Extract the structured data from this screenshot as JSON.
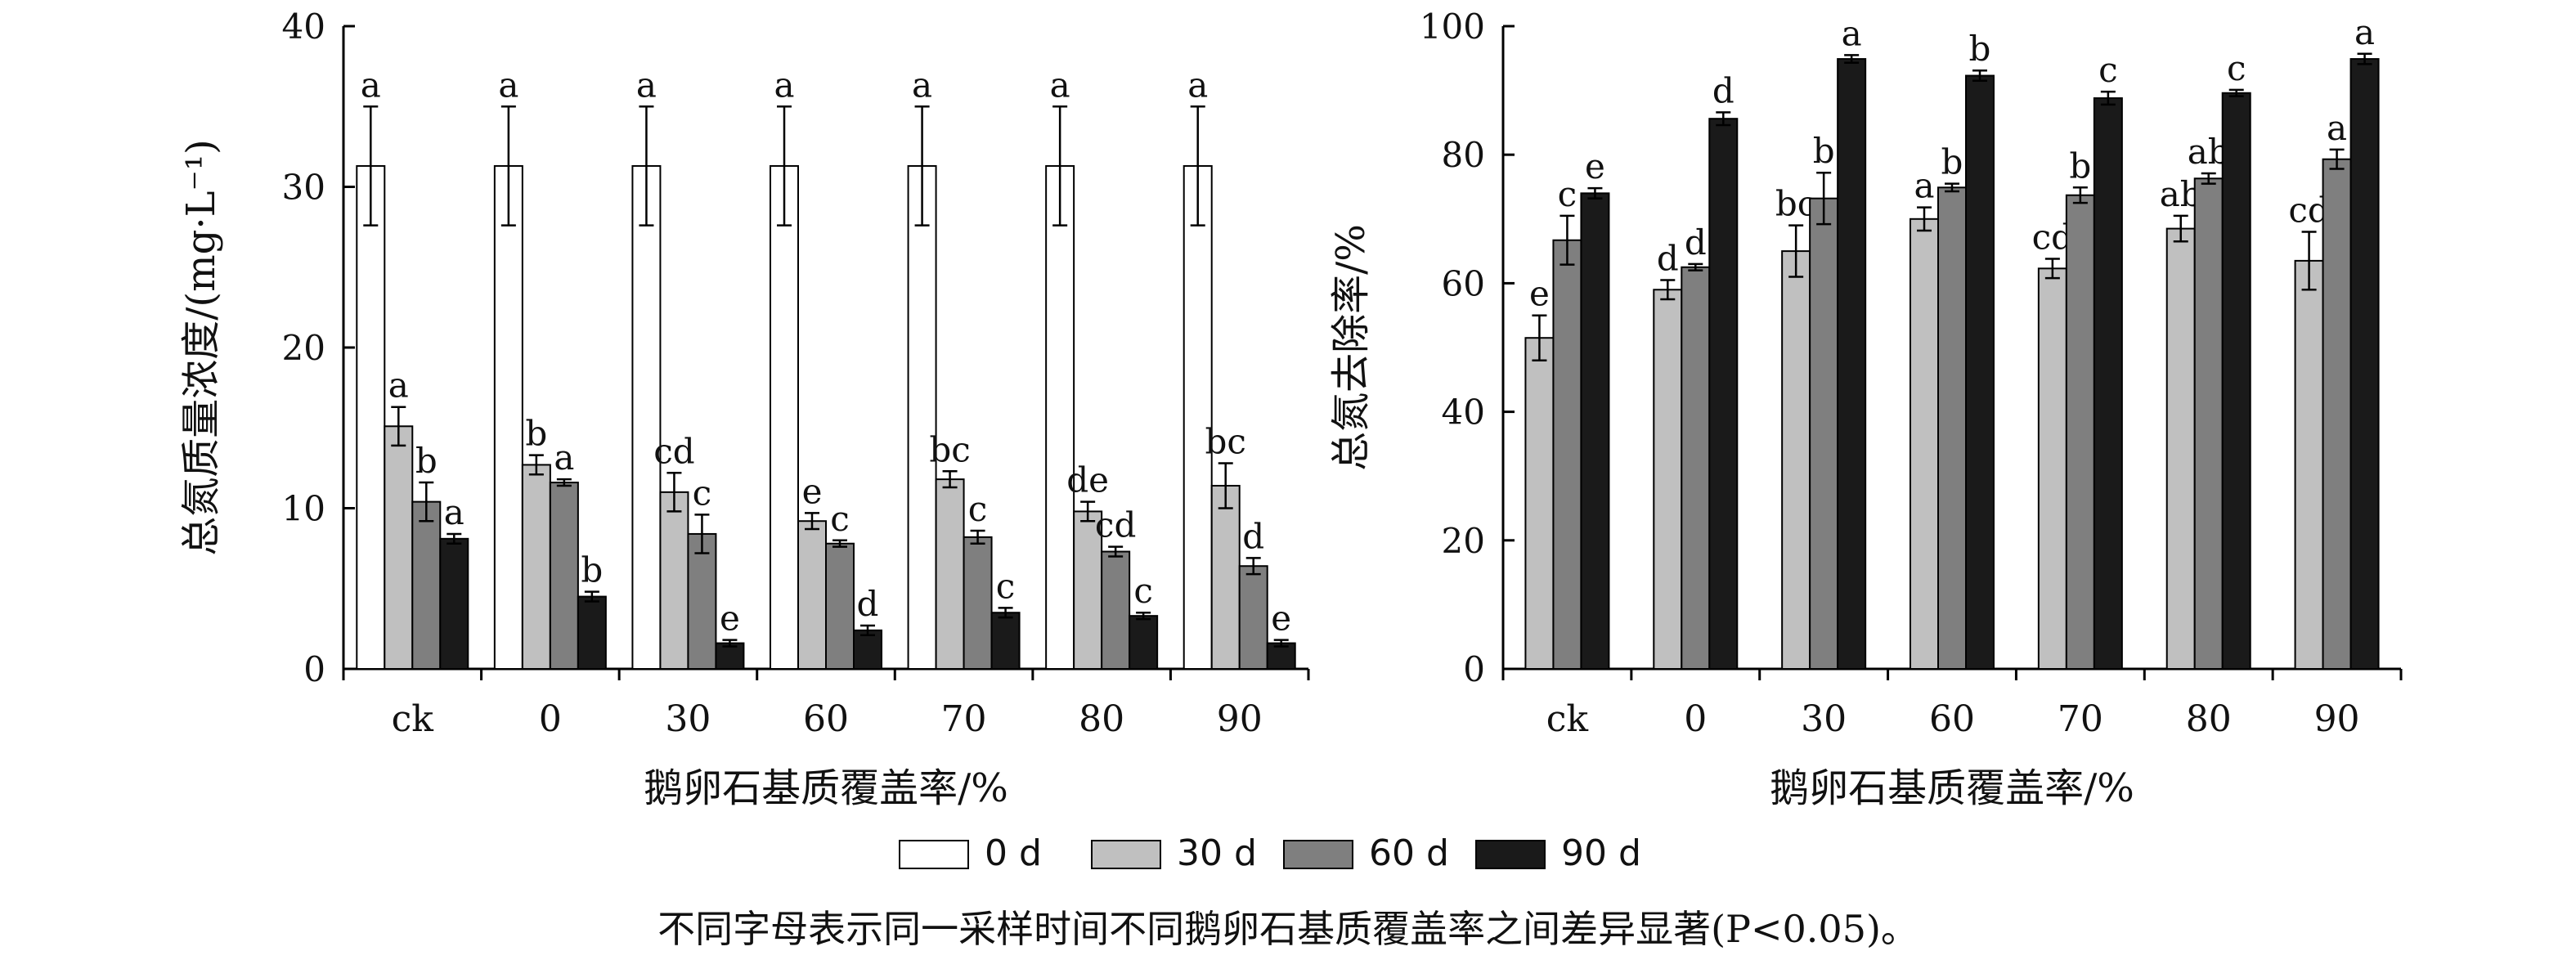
{
  "colors": {
    "0 d": "#ffffff",
    "30 d": "#c0c0c0",
    "60 d": "#7f7f7f",
    "90 d": "#1a1a1a",
    "axis": "#000000"
  },
  "legend": {
    "placement": "bottom-center",
    "items": [
      "0 d",
      "30 d",
      "60 d",
      "90 d"
    ]
  },
  "caption": {
    "text": "不同字母表示同一采样时间不同鹅卵石基质覆盖率之间差异显著(P<0.05)。"
  },
  "chart_data": [
    {
      "type": "bar",
      "title": "",
      "xlabel": "鹅卵石基质覆盖率/%",
      "ylabel": "总氮质量浓度/(mg·L⁻¹)",
      "categories": [
        "ck",
        "0",
        "30",
        "60",
        "70",
        "80",
        "90"
      ],
      "ylim": [
        0,
        40
      ],
      "yticks": [
        "0",
        "10",
        "20",
        "30",
        "40"
      ],
      "grid": false,
      "series": [
        {
          "name": "0 d",
          "values": [
            31.3,
            31.3,
            31.3,
            31.3,
            31.3,
            31.3,
            31.3
          ],
          "errors": [
            3.7,
            3.7,
            3.7,
            3.7,
            3.7,
            3.7,
            3.7
          ],
          "labels": [
            "a",
            "a",
            "a",
            "a",
            "a",
            "a",
            "a"
          ]
        },
        {
          "name": "30 d",
          "values": [
            15.1,
            12.7,
            11.0,
            9.2,
            11.8,
            9.8,
            11.4
          ],
          "errors": [
            1.2,
            0.6,
            1.2,
            0.5,
            0.5,
            0.6,
            1.4
          ],
          "labels": [
            "a",
            "b",
            "cd",
            "e",
            "bc",
            "de",
            "bc"
          ]
        },
        {
          "name": "60 d",
          "values": [
            10.4,
            11.6,
            8.4,
            7.8,
            8.2,
            7.3,
            6.4
          ],
          "errors": [
            1.2,
            0.2,
            1.2,
            0.2,
            0.4,
            0.3,
            0.5
          ],
          "labels": [
            "b",
            "a",
            "c",
            "c",
            "c",
            "cd",
            "d"
          ]
        },
        {
          "name": "90 d",
          "values": [
            8.1,
            4.5,
            1.6,
            2.4,
            3.5,
            3.3,
            1.6
          ],
          "errors": [
            0.3,
            0.3,
            0.2,
            0.3,
            0.3,
            0.2,
            0.2
          ],
          "labels": [
            "a",
            "b",
            "e",
            "d",
            "c",
            "c",
            "e"
          ]
        }
      ]
    },
    {
      "type": "bar",
      "title": "",
      "xlabel": "鹅卵石基质覆盖率/%",
      "ylabel": "总氮去除率/%",
      "categories": [
        "ck",
        "0",
        "30",
        "60",
        "70",
        "80",
        "90"
      ],
      "ylim": [
        0,
        100
      ],
      "yticks": [
        "0",
        "20",
        "40",
        "60",
        "80",
        "100"
      ],
      "grid": false,
      "series": [
        {
          "name": "30 d",
          "values": [
            51.5,
            59.0,
            65.0,
            70.0,
            62.3,
            68.5,
            63.5
          ],
          "errors": [
            3.5,
            1.5,
            4.0,
            1.8,
            1.5,
            2.0,
            4.5
          ],
          "labels": [
            "e",
            "d",
            "bc",
            "a",
            "cd",
            "ab",
            "cd"
          ]
        },
        {
          "name": "60 d",
          "values": [
            66.7,
            62.5,
            73.2,
            74.9,
            73.7,
            76.3,
            79.3
          ],
          "errors": [
            3.8,
            0.5,
            4.0,
            0.6,
            1.2,
            0.8,
            1.5
          ],
          "labels": [
            "c",
            "d",
            "b",
            "b",
            "b",
            "ab",
            "a"
          ]
        },
        {
          "name": "90 d",
          "values": [
            74.0,
            85.6,
            94.9,
            92.3,
            88.8,
            89.6,
            94.9
          ],
          "errors": [
            0.8,
            1.0,
            0.6,
            0.8,
            1.0,
            0.5,
            0.8
          ],
          "labels": [
            "e",
            "d",
            "a",
            "b",
            "c",
            "c",
            "a"
          ]
        }
      ]
    }
  ]
}
